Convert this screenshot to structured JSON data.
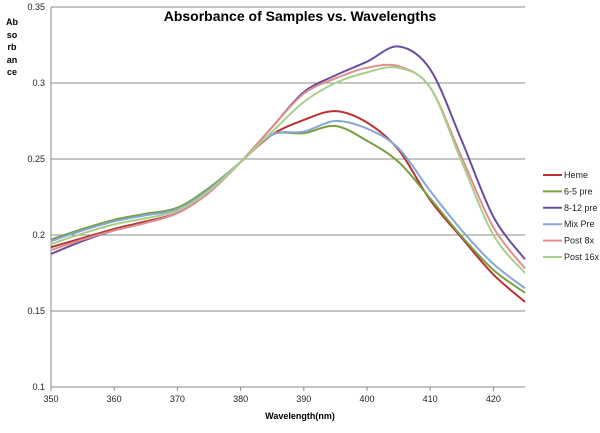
{
  "chart_data": {
    "type": "line",
    "title": "Absorbance of Samples vs. Wavelengths",
    "xlabel": "Wavelength(nm)",
    "ylabel": "Absorbance",
    "xlim": [
      350,
      425
    ],
    "ylim": [
      0.1,
      0.35
    ],
    "xticks": [
      350,
      360,
      370,
      380,
      390,
      400,
      410,
      420
    ],
    "yticks": [
      0.1,
      0.15,
      0.2,
      0.25,
      0.3,
      0.35
    ],
    "ytick_labels": [
      "0.1",
      "0.15",
      "0.2",
      "0.25",
      "0.3",
      "0.35"
    ],
    "grid": "horizontal",
    "legend": "right",
    "x": [
      350,
      355,
      360,
      365,
      370,
      375,
      380,
      385,
      390,
      395,
      400,
      405,
      410,
      415,
      420,
      425
    ],
    "series": [
      {
        "name": "Heme",
        "color": "#b83232",
        "values": [
          0.192,
          0.198,
          0.204,
          0.209,
          0.2145,
          0.228,
          0.248,
          0.266,
          0.2757,
          0.2815,
          0.274,
          0.256,
          0.223,
          0.198,
          0.174,
          0.156
        ]
      },
      {
        "name": "6-5 pre",
        "color": "#77a13c",
        "values": [
          0.197,
          0.204,
          0.21,
          0.214,
          0.218,
          0.231,
          0.248,
          0.266,
          0.267,
          0.2717,
          0.262,
          0.248,
          0.224,
          0.199,
          0.177,
          0.162
        ]
      },
      {
        "name": "8-12 pre",
        "color": "#6a4e9e",
        "values": [
          0.1875,
          0.196,
          0.203,
          0.208,
          0.2145,
          0.228,
          0.248,
          0.271,
          0.294,
          0.305,
          0.314,
          0.324,
          0.309,
          0.262,
          0.212,
          0.184
        ]
      },
      {
        "name": "Mix Pre",
        "color": "#86a7d8",
        "values": [
          0.196,
          0.203,
          0.209,
          0.213,
          0.217,
          0.23,
          0.248,
          0.266,
          0.268,
          0.275,
          0.27,
          0.257,
          0.229,
          0.203,
          0.181,
          0.165
        ]
      },
      {
        "name": "Post 8x",
        "color": "#e08e8e",
        "values": [
          0.19,
          0.197,
          0.203,
          0.208,
          0.2145,
          0.228,
          0.248,
          0.271,
          0.293,
          0.303,
          0.31,
          0.311,
          0.297,
          0.251,
          0.205,
          0.178
        ]
      },
      {
        "name": "Post 16x",
        "color": "#a9cf8a",
        "values": [
          0.194,
          0.201,
          0.207,
          0.211,
          0.216,
          0.229,
          0.248,
          0.268,
          0.2875,
          0.3,
          0.307,
          0.31,
          0.297,
          0.248,
          0.2,
          0.175
        ]
      }
    ]
  }
}
